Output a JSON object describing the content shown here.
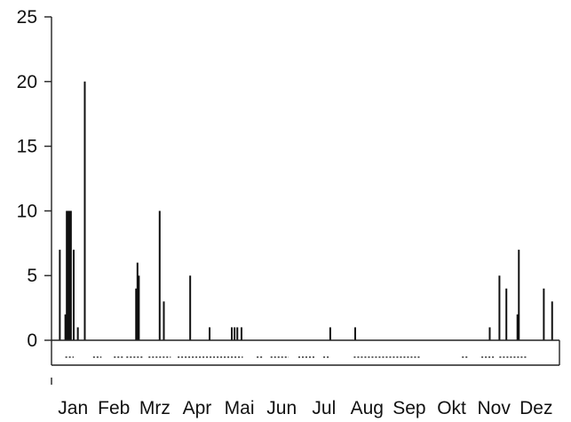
{
  "chart_data": {
    "type": "bar",
    "title": "",
    "xlabel": "",
    "ylabel": "",
    "ylim": [
      0,
      25
    ],
    "xlim": [
      0,
      365
    ],
    "yticks": [
      0,
      5,
      10,
      15,
      20,
      25
    ],
    "grid": false,
    "x_tick_labels": [
      {
        "label": "Jan",
        "day": 15.5
      },
      {
        "label": "Feb",
        "day": 45
      },
      {
        "label": "Mrz",
        "day": 74.5
      },
      {
        "label": "Apr",
        "day": 105
      },
      {
        "label": "Mai",
        "day": 135.5
      },
      {
        "label": "Jun",
        "day": 166
      },
      {
        "label": "Jul",
        "day": 196.5
      },
      {
        "label": "Aug",
        "day": 227.5
      },
      {
        "label": "Sep",
        "day": 258
      },
      {
        "label": "Okt",
        "day": 288.5
      },
      {
        "label": "Nov",
        "day": 319
      },
      {
        "label": "Dez",
        "day": 349.5
      }
    ],
    "bars": [
      {
        "day": 6,
        "value": 7
      },
      {
        "day": 10,
        "value": 2
      },
      {
        "day": 11,
        "value": 10
      },
      {
        "day": 12,
        "value": 10
      },
      {
        "day": 13,
        "value": 10
      },
      {
        "day": 14,
        "value": 10
      },
      {
        "day": 16,
        "value": 7
      },
      {
        "day": 19,
        "value": 1
      },
      {
        "day": 24,
        "value": 20
      },
      {
        "day": 61,
        "value": 4
      },
      {
        "day": 62,
        "value": 6
      },
      {
        "day": 63,
        "value": 5
      },
      {
        "day": 78,
        "value": 10
      },
      {
        "day": 81,
        "value": 3
      },
      {
        "day": 100,
        "value": 5
      },
      {
        "day": 114,
        "value": 1
      },
      {
        "day": 130,
        "value": 1
      },
      {
        "day": 132,
        "value": 1
      },
      {
        "day": 134,
        "value": 1
      },
      {
        "day": 137,
        "value": 1
      },
      {
        "day": 201,
        "value": 1
      },
      {
        "day": 219,
        "value": 1
      },
      {
        "day": 316,
        "value": 1
      },
      {
        "day": 323,
        "value": 5
      },
      {
        "day": 328,
        "value": 4
      },
      {
        "day": 336,
        "value": 2
      },
      {
        "day": 337,
        "value": 7
      },
      {
        "day": 355,
        "value": 4
      },
      {
        "day": 361,
        "value": 3
      }
    ],
    "observation_strip": {
      "segments": [
        [
          10,
          16
        ],
        [
          30,
          36
        ],
        [
          45,
          52
        ],
        [
          54,
          66
        ],
        [
          70,
          86
        ],
        [
          91,
          138
        ],
        [
          148,
          152
        ],
        [
          158,
          171
        ],
        [
          178,
          190
        ],
        [
          196,
          201
        ],
        [
          218,
          266
        ],
        [
          296,
          301
        ],
        [
          310,
          319
        ],
        [
          323,
          343
        ]
      ]
    },
    "colors": {
      "bar": "#111111",
      "axis": "#222222",
      "strip": "#666666"
    }
  }
}
